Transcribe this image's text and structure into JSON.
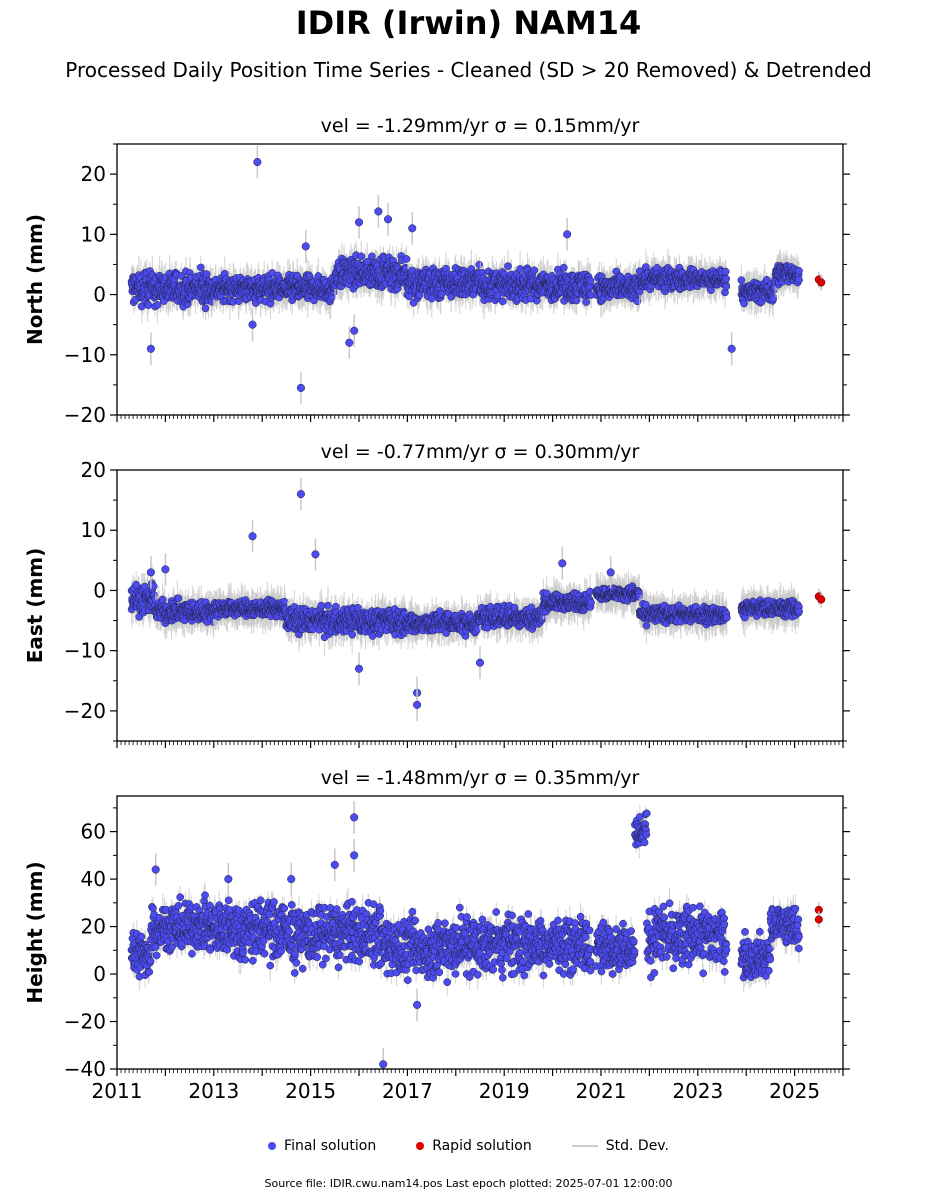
{
  "title": "IDIR (Irwin) NAM14",
  "subtitle": "Processed Daily Position Time Series - Cleaned (SD > 20 Removed) & Detrended",
  "legend": {
    "final": "Final solution",
    "rapid": "Rapid solution",
    "stddev": "Std. Dev."
  },
  "footer": "Source file: IDIR.cwu.nam14.pos  Last epoch plotted: 2025-07-01 12:00:00",
  "colors": {
    "final": "#4b4bf0",
    "rapid": "#e00000",
    "stddev": "#c8c8c8",
    "edge": "#222244"
  },
  "chart_data": [
    {
      "type": "scatter",
      "panel": "north",
      "title": "vel = -1.29mm/yr   σ = 0.15mm/yr",
      "ylabel": "North (mm)",
      "xlim": [
        2011,
        2026
      ],
      "ylim": [
        -20,
        25
      ],
      "yticks": [
        -20,
        -10,
        0,
        10,
        20
      ],
      "ytick_labels": [
        "−20",
        "−10",
        "0",
        "10",
        "20"
      ],
      "segments": [
        {
          "x0": 2011.3,
          "x1": 2013.0,
          "ymin": -3,
          "ymax": 5
        },
        {
          "x0": 2013.0,
          "x1": 2015.5,
          "ymin": -2,
          "ymax": 4
        },
        {
          "x0": 2015.5,
          "x1": 2017.0,
          "ymin": 0,
          "ymax": 7
        },
        {
          "x0": 2017.0,
          "x1": 2018.5,
          "ymin": -2,
          "ymax": 6
        },
        {
          "x0": 2018.5,
          "x1": 2020.8,
          "ymin": -2,
          "ymax": 5
        },
        {
          "x0": 2020.9,
          "x1": 2021.8,
          "ymin": -2,
          "ymax": 4
        },
        {
          "x0": 2021.8,
          "x1": 2023.6,
          "ymin": 0,
          "ymax": 5
        },
        {
          "x0": 2023.9,
          "x1": 2024.6,
          "ymin": -2,
          "ymax": 3
        },
        {
          "x0": 2024.6,
          "x1": 2025.1,
          "ymin": 1,
          "ymax": 6
        }
      ],
      "outliers": [
        [
          2013.9,
          22
        ],
        [
          2014.8,
          -15.5
        ],
        [
          2016.0,
          12
        ],
        [
          2016.4,
          13.8
        ],
        [
          2016.6,
          12.5
        ],
        [
          2015.9,
          -6
        ],
        [
          2015.8,
          -8
        ],
        [
          2011.7,
          -9
        ],
        [
          2023.7,
          -9
        ],
        [
          2013.8,
          -5
        ],
        [
          2020.3,
          10
        ],
        [
          2017.1,
          11
        ],
        [
          2014.9,
          8
        ]
      ],
      "rapid": [
        [
          2025.5,
          2.5
        ],
        [
          2025.55,
          2
        ]
      ]
    },
    {
      "type": "scatter",
      "panel": "east",
      "title": "vel = -0.77mm/yr   σ = 0.30mm/yr",
      "ylabel": "East (mm)",
      "xlim": [
        2011,
        2026
      ],
      "ylim": [
        -25,
        20
      ],
      "yticks": [
        -20,
        -10,
        0,
        10,
        20
      ],
      "ytick_labels": [
        "−20",
        "−10",
        "0",
        "10",
        "20"
      ],
      "segments": [
        {
          "x0": 2011.3,
          "x1": 2011.8,
          "ymin": -5,
          "ymax": 2
        },
        {
          "x0": 2011.8,
          "x1": 2013.0,
          "ymin": -6,
          "ymax": -1
        },
        {
          "x0": 2013.0,
          "x1": 2014.5,
          "ymin": -5,
          "ymax": -1
        },
        {
          "x0": 2014.5,
          "x1": 2017.0,
          "ymin": -8,
          "ymax": -2
        },
        {
          "x0": 2017.0,
          "x1": 2018.5,
          "ymin": -8,
          "ymax": -3
        },
        {
          "x0": 2018.5,
          "x1": 2019.8,
          "ymin": -7,
          "ymax": -2
        },
        {
          "x0": 2019.8,
          "x1": 2020.8,
          "ymin": -4,
          "ymax": 0
        },
        {
          "x0": 2020.9,
          "x1": 2021.8,
          "ymin": -2,
          "ymax": 1
        },
        {
          "x0": 2021.8,
          "x1": 2023.6,
          "ymin": -6,
          "ymax": -2
        },
        {
          "x0": 2023.9,
          "x1": 2025.1,
          "ymin": -5,
          "ymax": -1
        }
      ],
      "outliers": [
        [
          2014.8,
          16
        ],
        [
          2013.8,
          9
        ],
        [
          2015.1,
          6
        ],
        [
          2017.2,
          -17
        ],
        [
          2017.2,
          -19
        ],
        [
          2016.0,
          -13
        ],
        [
          2018.5,
          -12
        ],
        [
          2011.7,
          3
        ],
        [
          2012.0,
          3.5
        ],
        [
          2020.2,
          4.5
        ],
        [
          2021.2,
          3
        ]
      ],
      "rapid": [
        [
          2025.5,
          -1
        ],
        [
          2025.55,
          -1.5
        ]
      ]
    },
    {
      "type": "scatter",
      "panel": "height",
      "title": "vel = -1.48mm/yr   σ = 0.35mm/yr",
      "ylabel": "Height (mm)",
      "xlim": [
        2011,
        2026
      ],
      "ylim": [
        -40,
        75
      ],
      "yticks": [
        -40,
        -20,
        0,
        20,
        40,
        60
      ],
      "ytick_labels": [
        "−40",
        "−20",
        "0",
        "20",
        "40",
        "60"
      ],
      "segments": [
        {
          "x0": 2011.3,
          "x1": 2011.7,
          "ymin": -8,
          "ymax": 25
        },
        {
          "x0": 2011.7,
          "x1": 2013.0,
          "ymin": 5,
          "ymax": 35
        },
        {
          "x0": 2013.0,
          "x1": 2014.5,
          "ymin": 0,
          "ymax": 38
        },
        {
          "x0": 2014.5,
          "x1": 2016.5,
          "ymin": -2,
          "ymax": 35
        },
        {
          "x0": 2016.5,
          "x1": 2018.0,
          "ymin": -8,
          "ymax": 30
        },
        {
          "x0": 2018.0,
          "x1": 2020.8,
          "ymin": -5,
          "ymax": 30
        },
        {
          "x0": 2020.9,
          "x1": 2021.7,
          "ymin": -2,
          "ymax": 25
        },
        {
          "x0": 2021.7,
          "x1": 2021.95,
          "ymin": 50,
          "ymax": 70
        },
        {
          "x0": 2021.95,
          "x1": 2023.6,
          "ymin": -3,
          "ymax": 35
        },
        {
          "x0": 2023.9,
          "x1": 2024.5,
          "ymin": -5,
          "ymax": 20
        },
        {
          "x0": 2024.5,
          "x1": 2025.1,
          "ymin": 8,
          "ymax": 33
        }
      ],
      "outliers": [
        [
          2015.9,
          66
        ],
        [
          2015.9,
          50
        ],
        [
          2016.5,
          -38
        ],
        [
          2015.5,
          46
        ],
        [
          2014.6,
          40
        ],
        [
          2011.8,
          44
        ],
        [
          2017.2,
          -13
        ],
        [
          2013.3,
          40
        ]
      ],
      "rapid": [
        [
          2025.5,
          27
        ],
        [
          2025.5,
          23
        ]
      ]
    }
  ],
  "xticks": [
    2011,
    2013,
    2015,
    2017,
    2019,
    2021,
    2023,
    2025
  ],
  "xtick_labels": [
    "2011",
    "2013",
    "2015",
    "2017",
    "2019",
    "2021",
    "2023",
    "2025"
  ]
}
